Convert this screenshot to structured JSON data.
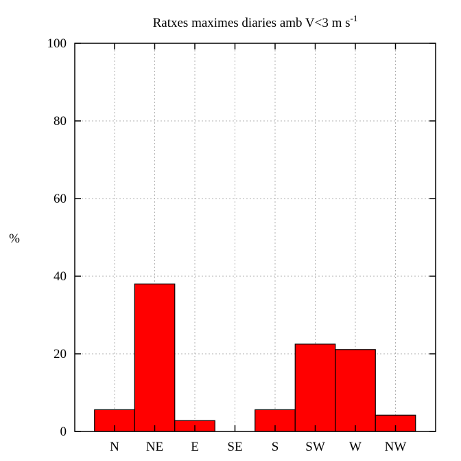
{
  "chart_data": {
    "type": "bar",
    "title_main": "Ratxes maximes diaries amb V<3 m s",
    "title_sup": "-1",
    "xlabel": "",
    "ylabel": "%",
    "ylim": [
      0,
      100
    ],
    "yticks": [
      "0",
      "20",
      "40",
      "60",
      "80",
      "100"
    ],
    "categories": [
      "N",
      "NE",
      "E",
      "SE",
      "S",
      "SW",
      "W",
      "NW"
    ],
    "values": [
      5.6,
      38.0,
      2.8,
      0,
      5.6,
      22.5,
      21.1,
      4.2
    ],
    "grid": true,
    "bar_color": "#ff0000"
  }
}
